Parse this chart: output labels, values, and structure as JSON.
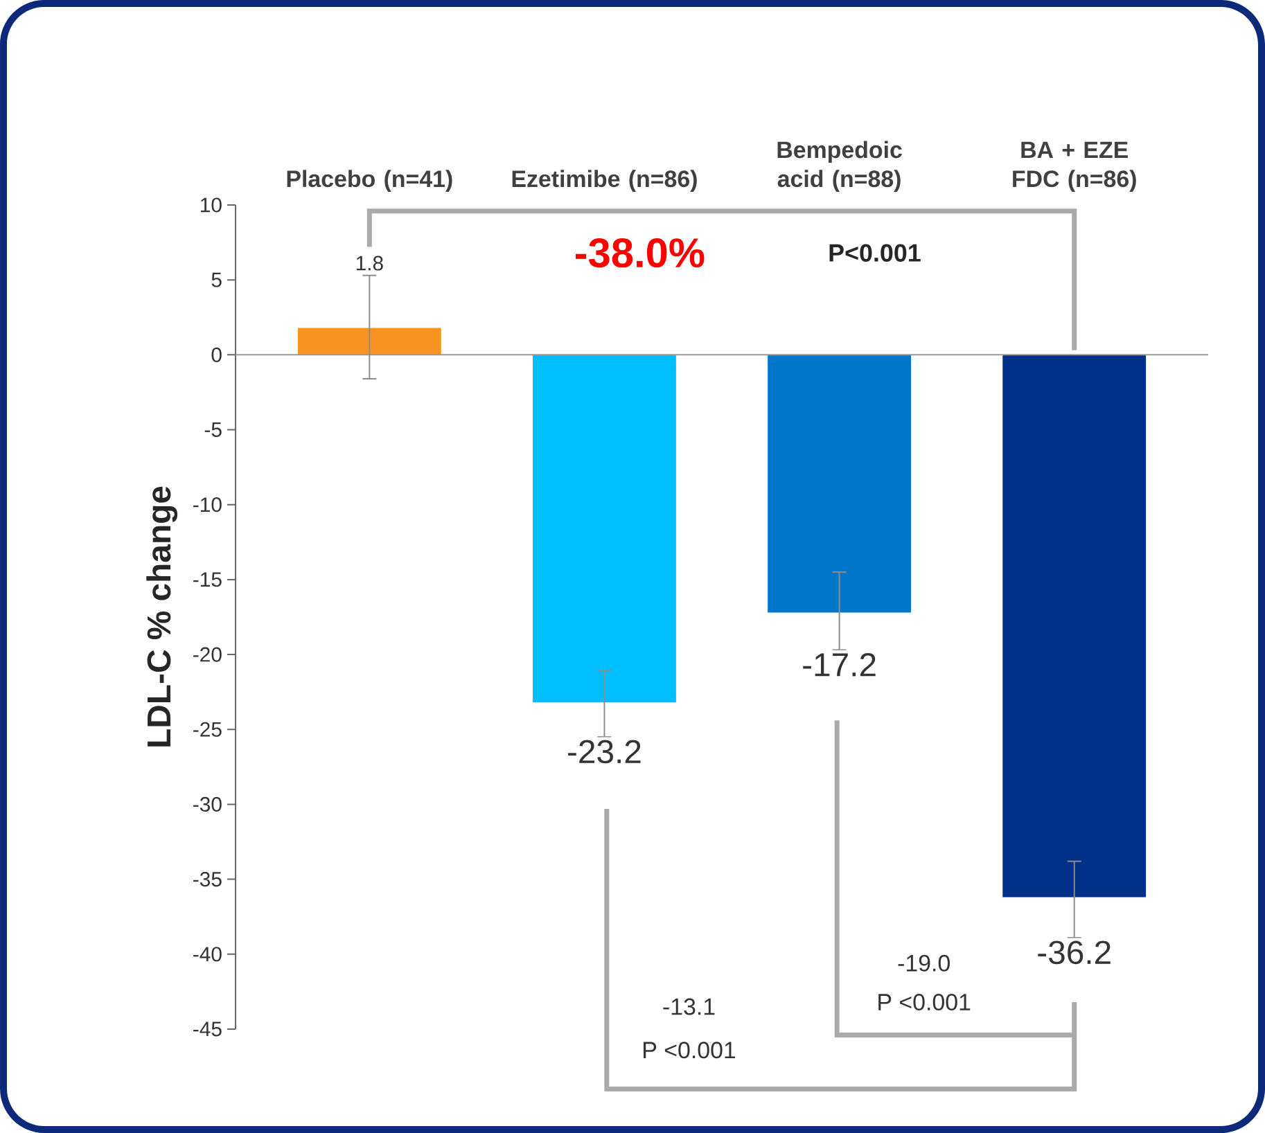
{
  "chart_data": {
    "type": "bar",
    "ylabel": "LDL-C % change",
    "categories": [
      "Placebo (n=41)",
      "Ezetimibe (n=86)",
      "Bempedoic acid (n=88)",
      "BA + EZE FDC (n=86)"
    ],
    "values": [
      1.8,
      -23.2,
      -17.2,
      -36.2
    ],
    "colors": [
      "#f7931e",
      "#00bfff",
      "#0077c8",
      "#003087"
    ],
    "errors": [
      [
        -1.6,
        5.3
      ],
      [
        -25.5,
        -21.1
      ],
      [
        -19.7,
        -14.5
      ],
      [
        -38.9,
        -33.8
      ]
    ],
    "data_labels": true,
    "ylim": [
      -45,
      10
    ],
    "yticks": [
      -45,
      -40,
      -35,
      -30,
      -25,
      -20,
      -15,
      -10,
      -5,
      0,
      5,
      10
    ],
    "annotations": [
      "-38.0%",
      "P<0.001",
      "-13.1",
      "P <0.001",
      "-19.0",
      "P <0.001"
    ]
  }
}
